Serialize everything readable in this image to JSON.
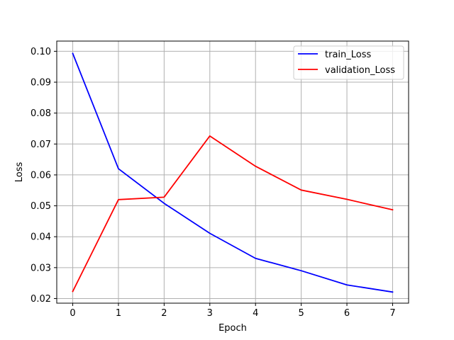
{
  "chart_data": {
    "type": "line",
    "title": "",
    "xlabel": "Epoch",
    "ylabel": "Loss",
    "x": [
      0,
      1,
      2,
      3,
      4,
      5,
      6,
      7
    ],
    "xlim": [
      -0.35,
      7.35
    ],
    "ylim": [
      0.0185,
      0.1033
    ],
    "x_ticks": [
      0,
      1,
      2,
      3,
      4,
      5,
      6,
      7
    ],
    "y_ticks": [
      0.02,
      0.03,
      0.04,
      0.05,
      0.06,
      0.07,
      0.08,
      0.09,
      0.1
    ],
    "y_tick_labels": [
      "0.02",
      "0.03",
      "0.04",
      "0.05",
      "0.06",
      "0.07",
      "0.08",
      "0.09",
      "0.10"
    ],
    "grid": true,
    "legend_position": "top-right",
    "series": [
      {
        "name": "train_Loss",
        "color": "#0000ff",
        "values": [
          0.0993,
          0.062,
          0.0508,
          0.0411,
          0.033,
          0.029,
          0.0244,
          0.0221
        ]
      },
      {
        "name": "validation_Loss",
        "color": "#ff0000",
        "values": [
          0.0223,
          0.052,
          0.0528,
          0.0726,
          0.0628,
          0.0551,
          0.0521,
          0.0487
        ]
      }
    ]
  }
}
